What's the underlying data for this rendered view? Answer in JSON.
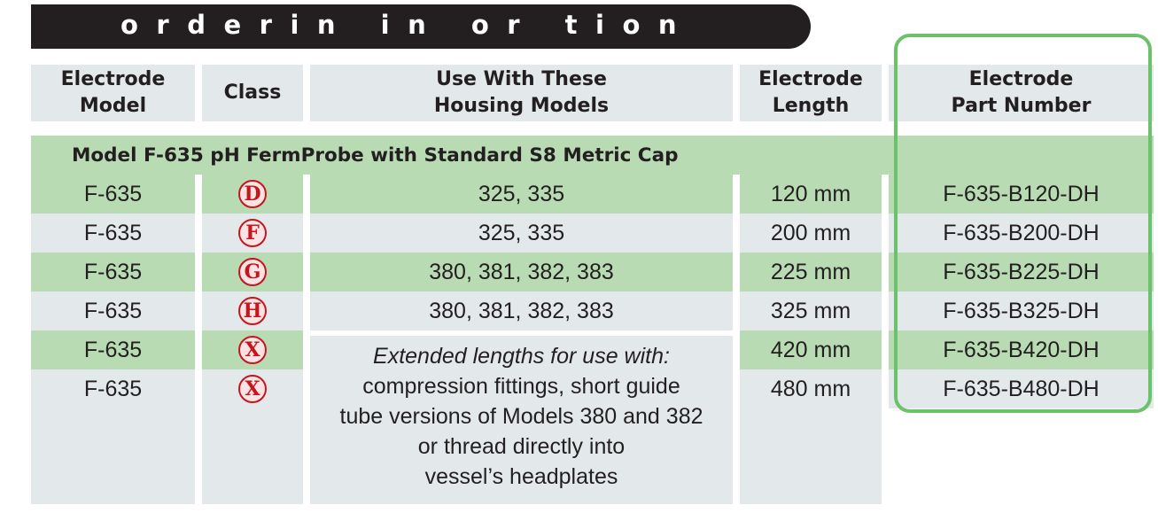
{
  "banner": {
    "title": "orderin in or tion"
  },
  "headers": [
    {
      "key": "model",
      "label": "Electrode\nModel"
    },
    {
      "key": "class",
      "label": "Class"
    },
    {
      "key": "housing",
      "label": "Use With These\nHousing Models"
    },
    {
      "key": "length",
      "label": "Electrode\nLength"
    },
    {
      "key": "part",
      "label": "Electrode\nPart Number"
    }
  ],
  "section": {
    "title": "Model F-635 pH FermProbe with Standard S8 Metric Cap"
  },
  "rows": [
    {
      "model": "F-635",
      "class": "D",
      "housing": "325, 335",
      "length": "120 mm",
      "part": "F-635-B120-DH"
    },
    {
      "model": "F-635",
      "class": "F",
      "housing": "325, 335",
      "length": "200 mm",
      "part": "F-635-B200-DH"
    },
    {
      "model": "F-635",
      "class": "G",
      "housing": "380, 381, 382, 383",
      "length": "225 mm",
      "part": "F-635-B225-DH"
    },
    {
      "model": "F-635",
      "class": "H",
      "housing": "380, 381, 382, 383",
      "length": "325 mm",
      "part": "F-635-B325-DH"
    },
    {
      "model": "F-635",
      "class": "X",
      "housing": "",
      "length": "420 mm",
      "part": "F-635-B420-DH"
    },
    {
      "model": "F-635",
      "class": "X",
      "housing": "",
      "length": "480 mm",
      "part": "F-635-B480-DH"
    }
  ],
  "extended_note": {
    "heading": "Extended lengths for use with:",
    "line1": "compression fittings, short guide",
    "line2": "tube versions of Models 380 and 382",
    "line3": "or thread directly into",
    "line4": "vessel’s headplates"
  },
  "colors": {
    "banner": "#231f20",
    "header_bg": "#e3e8eb",
    "row_green": "#b9dbb3",
    "badge_red": "#c4161c",
    "highlight_border": "#6cc26a"
  }
}
